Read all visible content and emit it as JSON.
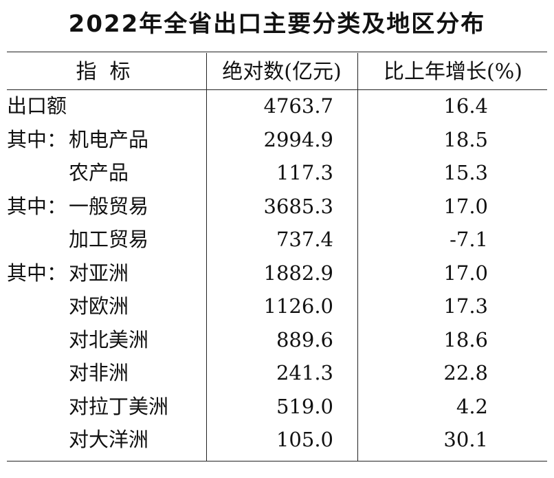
{
  "title": "2022年全省出口主要分类及地区分布",
  "table": {
    "header": [
      "指  标",
      "绝对数(亿元)",
      "比上年增长(%)"
    ],
    "total": {
      "label": "出口额",
      "value": "4763.7",
      "growth": "16.4"
    },
    "groups": [
      {
        "prefix": "其中：",
        "items": [
          {
            "label": "机电产品",
            "value": "2994.9",
            "growth": "18.5"
          },
          {
            "label": "农产品",
            "value": "117.3",
            "growth": "15.3"
          }
        ]
      },
      {
        "prefix": "其中：",
        "items": [
          {
            "label": "一般贸易",
            "value": "3685.3",
            "growth": "17.0"
          },
          {
            "label": "加工贸易",
            "value": "737.4",
            "growth": "-7.1"
          }
        ]
      },
      {
        "prefix": "其中：",
        "items": [
          {
            "label": "对亚洲",
            "value": "1882.9",
            "growth": "17.0"
          },
          {
            "label": "对欧洲",
            "value": "1126.0",
            "growth": "17.3"
          },
          {
            "label": "对北美洲",
            "value": "889.6",
            "growth": "18.6"
          },
          {
            "label": "对非洲",
            "value": "241.3",
            "growth": "22.8"
          },
          {
            "label": "对拉丁美洲",
            "value": "519.0",
            "growth": "4.2"
          },
          {
            "label": "对大洋洲",
            "value": "105.0",
            "growth": "30.1"
          }
        ]
      }
    ]
  }
}
